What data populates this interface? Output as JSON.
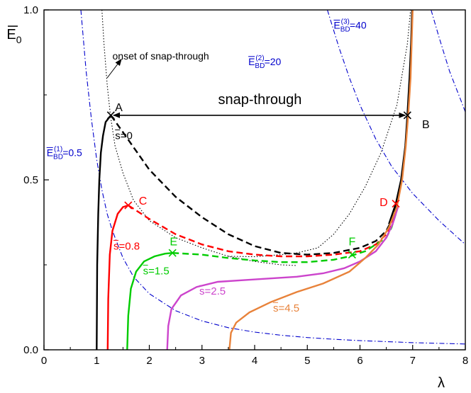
{
  "chart_data": {
    "type": "line",
    "xlabel": "λ",
    "ylabel_main": "E",
    "ylabel_sub": "0",
    "xlim": [
      0,
      8
    ],
    "ylim": [
      0,
      1
    ],
    "xticks": [
      0,
      1,
      2,
      3,
      4,
      5,
      6,
      7,
      8
    ],
    "yticks": [
      {
        "value": 0,
        "label": "0.0"
      },
      {
        "value": 0.5,
        "label": "0.5"
      },
      {
        "value": 1,
        "label": "1.0"
      }
    ],
    "grid": false,
    "series": [
      {
        "name": "s=0",
        "label_main": "s",
        "label_rest": "=0",
        "color": "#000000",
        "solid": [
          [
            1.0,
            0.0
          ],
          [
            1.01,
            0.25
          ],
          [
            1.03,
            0.4
          ],
          [
            1.05,
            0.5
          ],
          [
            1.08,
            0.58
          ],
          [
            1.12,
            0.63
          ],
          [
            1.17,
            0.67
          ],
          [
            1.22,
            0.68
          ],
          [
            1.27,
            0.69
          ]
        ],
        "dashed": [
          [
            1.27,
            0.69
          ],
          [
            1.5,
            0.64
          ],
          [
            2.0,
            0.53
          ],
          [
            2.5,
            0.45
          ],
          [
            3.0,
            0.39
          ],
          [
            3.5,
            0.34
          ],
          [
            4.0,
            0.305
          ],
          [
            4.5,
            0.285
          ],
          [
            5.0,
            0.28
          ],
          [
            5.5,
            0.285
          ],
          [
            6.0,
            0.3
          ],
          [
            6.3,
            0.32
          ],
          [
            6.5,
            0.35
          ],
          [
            6.6,
            0.38
          ],
          [
            6.7,
            0.43
          ]
        ],
        "label_pos": [
          1.35,
          0.62
        ]
      },
      {
        "name": "s=0.8",
        "label_main": "s",
        "label_rest": "=0.8",
        "color": "#ff0000",
        "solid": [
          [
            1.21,
            0.0
          ],
          [
            1.22,
            0.15
          ],
          [
            1.25,
            0.28
          ],
          [
            1.3,
            0.35
          ],
          [
            1.4,
            0.4
          ],
          [
            1.5,
            0.42
          ],
          [
            1.6,
            0.425
          ]
        ],
        "dashed": [
          [
            1.6,
            0.425
          ],
          [
            2.0,
            0.385
          ],
          [
            2.5,
            0.34
          ],
          [
            3.0,
            0.31
          ],
          [
            3.5,
            0.29
          ],
          [
            4.0,
            0.28
          ],
          [
            4.5,
            0.275
          ],
          [
            5.0,
            0.275
          ],
          [
            5.5,
            0.28
          ],
          [
            6.0,
            0.29
          ],
          [
            6.3,
            0.31
          ],
          [
            6.5,
            0.34
          ],
          [
            6.6,
            0.37
          ],
          [
            6.7,
            0.42
          ]
        ],
        "label_pos": [
          1.32,
          0.295
        ]
      },
      {
        "name": "s=1.5",
        "label_main": "s",
        "label_rest": "=1.5",
        "color": "#00cc00",
        "solid": [
          [
            1.58,
            0.0
          ],
          [
            1.6,
            0.1
          ],
          [
            1.65,
            0.18
          ],
          [
            1.75,
            0.23
          ],
          [
            1.9,
            0.26
          ],
          [
            2.1,
            0.275
          ],
          [
            2.3,
            0.283
          ],
          [
            2.44,
            0.285
          ]
        ],
        "dashed": [
          [
            2.44,
            0.285
          ],
          [
            3.0,
            0.28
          ],
          [
            3.5,
            0.27
          ],
          [
            4.0,
            0.263
          ],
          [
            4.5,
            0.258
          ],
          [
            5.0,
            0.258
          ],
          [
            5.5,
            0.265
          ],
          [
            5.8,
            0.275
          ],
          [
            6.1,
            0.29
          ],
          [
            6.3,
            0.31
          ],
          [
            6.5,
            0.33
          ],
          [
            6.6,
            0.36
          ],
          [
            6.7,
            0.41
          ]
        ],
        "label_pos": [
          1.88,
          0.222
        ]
      },
      {
        "name": "s=2.5",
        "label_main": "s",
        "label_rest": "=2.5",
        "color": "#cc44cc",
        "solid": [
          [
            2.34,
            0.0
          ],
          [
            2.36,
            0.07
          ],
          [
            2.42,
            0.12
          ],
          [
            2.6,
            0.16
          ],
          [
            2.9,
            0.185
          ],
          [
            3.3,
            0.2
          ],
          [
            3.8,
            0.205
          ],
          [
            4.3,
            0.21
          ],
          [
            4.8,
            0.215
          ],
          [
            5.3,
            0.225
          ],
          [
            5.7,
            0.24
          ],
          [
            6.0,
            0.26
          ],
          [
            6.3,
            0.29
          ],
          [
            6.5,
            0.33
          ],
          [
            6.62,
            0.37
          ],
          [
            6.72,
            0.42
          ]
        ],
        "label_pos": [
          2.95,
          0.162
        ]
      },
      {
        "name": "s=4.5",
        "label_main": "s",
        "label_rest": "=4.5",
        "color": "#e8823a",
        "solid": [
          [
            3.52,
            0.0
          ],
          [
            3.55,
            0.05
          ],
          [
            3.65,
            0.08
          ],
          [
            3.9,
            0.11
          ],
          [
            4.3,
            0.14
          ],
          [
            4.8,
            0.17
          ],
          [
            5.3,
            0.195
          ],
          [
            5.8,
            0.23
          ],
          [
            6.1,
            0.27
          ],
          [
            6.35,
            0.31
          ],
          [
            6.55,
            0.36
          ],
          [
            6.7,
            0.42
          ],
          [
            6.8,
            0.5
          ],
          [
            6.87,
            0.6
          ],
          [
            6.92,
            0.7
          ],
          [
            6.96,
            0.8
          ],
          [
            6.98,
            0.9
          ],
          [
            7.0,
            1.0
          ]
        ],
        "label_pos": [
          4.35,
          0.112
        ]
      }
    ],
    "upper_branch": {
      "color": "#000000",
      "points": [
        [
          6.55,
          0.37
        ],
        [
          6.68,
          0.43
        ],
        [
          6.78,
          0.5
        ],
        [
          6.86,
          0.6
        ],
        [
          6.9,
          0.69
        ],
        [
          6.94,
          0.8
        ],
        [
          6.97,
          0.9
        ],
        [
          6.99,
          1.0
        ]
      ]
    },
    "breakdown_curves": [
      {
        "name": "E_BD(1)=0.5",
        "main": "E",
        "sub": "BD",
        "sup": "(1)",
        "rest": "=0.5",
        "color": "#0000cc",
        "points": [
          [
            0.7,
            1.0
          ],
          [
            0.8,
            0.82
          ],
          [
            0.9,
            0.68
          ],
          [
            1.0,
            0.56
          ],
          [
            1.1,
            0.47
          ],
          [
            1.2,
            0.4
          ],
          [
            1.3,
            0.35
          ],
          [
            1.5,
            0.27
          ],
          [
            1.7,
            0.215
          ],
          [
            2.0,
            0.165
          ],
          [
            2.5,
            0.115
          ],
          [
            3.0,
            0.085
          ],
          [
            3.5,
            0.065
          ],
          [
            4.0,
            0.052
          ],
          [
            4.5,
            0.043
          ],
          [
            5.0,
            0.036
          ],
          [
            5.5,
            0.031
          ],
          [
            6.0,
            0.027
          ],
          [
            7.0,
            0.021
          ],
          [
            8.0,
            0.017
          ]
        ],
        "label_pos": [
          0.05,
          0.57
        ]
      },
      {
        "name": "E_BD(2)=20",
        "main": "E",
        "sub": "BD",
        "sup": "(2)",
        "rest": "=20",
        "color": "#0000cc",
        "points": [
          [
            5.38,
            1.0
          ],
          [
            5.6,
            0.89
          ],
          [
            5.8,
            0.8
          ],
          [
            6.0,
            0.72
          ],
          [
            6.3,
            0.62
          ],
          [
            6.6,
            0.54
          ],
          [
            7.0,
            0.46
          ],
          [
            7.5,
            0.38
          ],
          [
            8.0,
            0.31
          ]
        ],
        "label_pos": [
          3.88,
          0.838
        ]
      },
      {
        "name": "E_BD(3)=40",
        "main": "E",
        "sub": "BD",
        "sup": "(3)",
        "rest": "=40",
        "color": "#0000cc",
        "points": [
          [
            7.35,
            1.0
          ],
          [
            7.5,
            0.92
          ],
          [
            7.7,
            0.82
          ],
          [
            7.9,
            0.74
          ],
          [
            8.0,
            0.7
          ]
        ],
        "label_pos": [
          5.5,
          0.945
        ]
      }
    ],
    "dotted_curves": [
      {
        "color": "#000000",
        "points": [
          [
            1.1,
            1.0
          ],
          [
            1.14,
            0.9
          ],
          [
            1.2,
            0.78
          ],
          [
            1.26,
            0.69
          ],
          [
            1.35,
            0.6
          ],
          [
            1.5,
            0.52
          ],
          [
            1.7,
            0.44
          ],
          [
            2.0,
            0.38
          ],
          [
            2.5,
            0.33
          ],
          [
            3.0,
            0.3
          ],
          [
            3.5,
            0.275
          ],
          [
            4.0,
            0.26
          ],
          [
            4.5,
            0.25
          ],
          [
            4.8,
            0.248
          ]
        ]
      },
      {
        "color": "#000000",
        "points": [
          [
            3.5,
            0.275
          ],
          [
            4.0,
            0.274
          ],
          [
            4.5,
            0.28
          ],
          [
            4.8,
            0.285
          ],
          [
            5.2,
            0.3
          ],
          [
            5.5,
            0.34
          ],
          [
            5.8,
            0.4
          ],
          [
            6.1,
            0.48
          ],
          [
            6.4,
            0.58
          ],
          [
            6.7,
            0.72
          ],
          [
            6.9,
            0.9
          ],
          [
            6.96,
            1.0
          ]
        ]
      }
    ],
    "markers": [
      {
        "label": "A",
        "x": 1.27,
        "y": 0.69,
        "color": "#000000",
        "label_pos": [
          1.42,
          0.715
        ]
      },
      {
        "label": "B",
        "x": 6.9,
        "y": 0.69,
        "color": "#000000",
        "label_pos": [
          7.25,
          0.665
        ]
      },
      {
        "label": "C",
        "x": 1.6,
        "y": 0.425,
        "color": "#ff0000",
        "label_pos": [
          1.88,
          0.44
        ]
      },
      {
        "label": "D",
        "x": 6.68,
        "y": 0.43,
        "color": "#ff0000",
        "label_pos": [
          6.45,
          0.435
        ]
      },
      {
        "label": "E",
        "x": 2.44,
        "y": 0.285,
        "color": "#00cc00",
        "label_pos": [
          2.46,
          0.32
        ]
      },
      {
        "label": "F",
        "x": 5.85,
        "y": 0.28,
        "color": "#00cc00",
        "label_pos": [
          5.85,
          0.32
        ]
      }
    ],
    "annotations": {
      "snap_through_label": "snap-through",
      "snap_through_pos": [
        4.1,
        0.735
      ],
      "arrow_y": 0.69,
      "onset_label": "onset of snap-through",
      "onset_pos": [
        1.3,
        0.865
      ],
      "onset_arrow_from": [
        1.2,
        0.8
      ],
      "onset_arrow_to": [
        1.47,
        0.855
      ]
    }
  }
}
